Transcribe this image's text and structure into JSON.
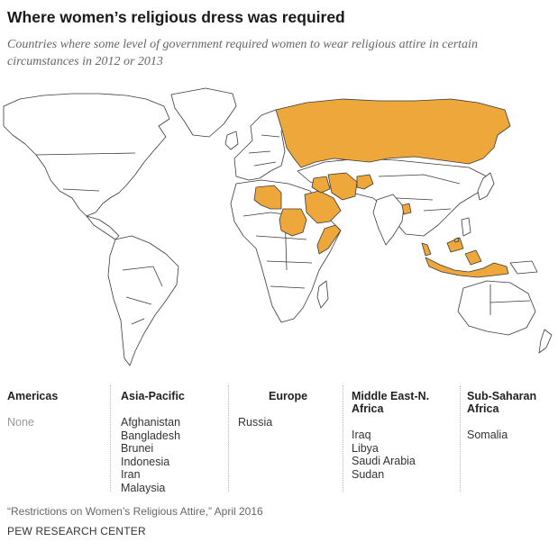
{
  "title": "Where women’s religious dress was required",
  "subtitle": "Countries where some level of government required women to wear religious attire in certain circumstances in 2012 or 2013",
  "colors": {
    "highlight": "#eea73a",
    "land": "#ffffff",
    "border": "#3a3a3a"
  },
  "regions": [
    {
      "name": "Americas",
      "countries": [],
      "empty_text": "None"
    },
    {
      "name": "Asia-Pacific",
      "countries": [
        "Afghanistan",
        "Bangladesh",
        "Brunei",
        "Indonesia",
        "Iran",
        "Malaysia"
      ]
    },
    {
      "name": "Europe",
      "countries": [
        "Russia"
      ]
    },
    {
      "name": "Middle East-N. Africa",
      "countries": [
        "Iraq",
        "Libya",
        "Saudi Arabia",
        "Sudan"
      ]
    },
    {
      "name": "Sub-Saharan Africa",
      "countries": [
        "Somalia"
      ]
    }
  ],
  "source": "“Restrictions on Women’s Religious Attire,” April 2016",
  "credit": "PEW RESEARCH CENTER"
}
